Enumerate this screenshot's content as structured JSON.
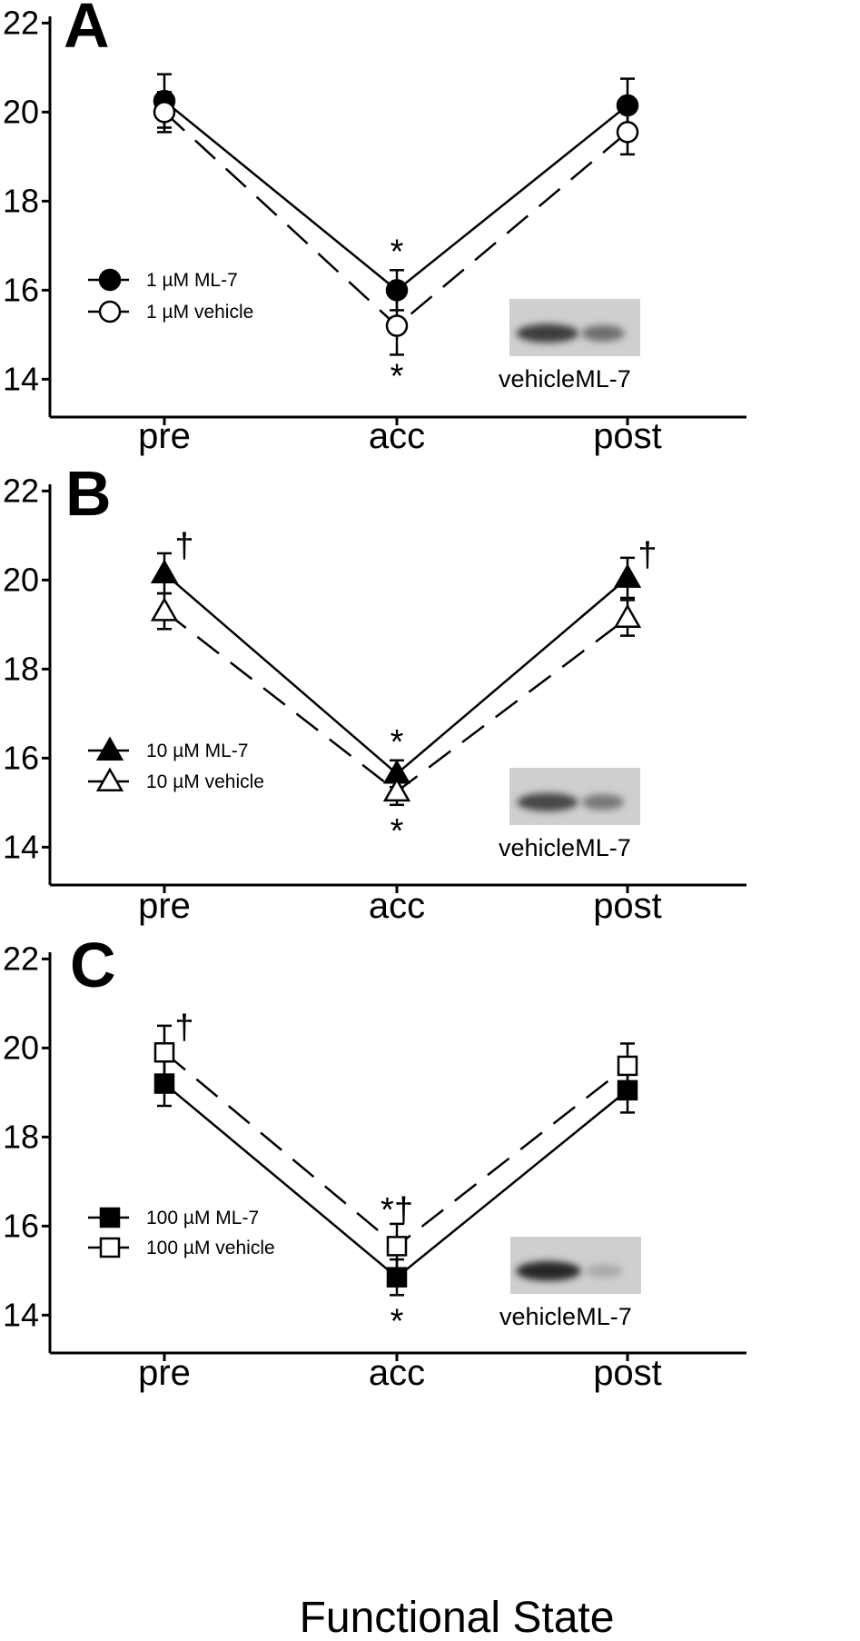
{
  "figure": {
    "xlabel": "Functional State"
  },
  "chart_data": [
    {
      "type": "line",
      "panel_label": "A",
      "categories": [
        "pre",
        "acc",
        "post"
      ],
      "ylim": [
        13,
        22
      ],
      "yticks": [
        14,
        16,
        18,
        20,
        22
      ],
      "grid": false,
      "legend_position": "lower-left",
      "series": [
        {
          "name": "1 µM ML-7",
          "values": [
            20.25,
            16.0,
            20.15
          ],
          "errors": [
            0.6,
            0.45,
            0.6
          ],
          "marker": "circle",
          "filled": true,
          "dash": "solid"
        },
        {
          "name": "1 µM vehicle",
          "values": [
            20.0,
            15.2,
            19.55
          ],
          "errors": [
            0.45,
            0.65,
            0.5
          ],
          "marker": "circle",
          "filled": false,
          "dash": "dashed"
        }
      ],
      "annotations": [
        {
          "text": "*",
          "category": "acc",
          "y": 16.9
        },
        {
          "text": "*",
          "category": "acc",
          "y": 14.1
        }
      ],
      "inset": {
        "labels": [
          "vehicle",
          "ML-7"
        ],
        "band_strengths": [
          0.85,
          0.6
        ]
      }
    },
    {
      "type": "line",
      "panel_label": "B",
      "categories": [
        "pre",
        "acc",
        "post"
      ],
      "ylim": [
        13,
        22
      ],
      "yticks": [
        14,
        16,
        18,
        20,
        22
      ],
      "grid": false,
      "legend_position": "lower-left",
      "series": [
        {
          "name": "10 µM ML-7",
          "values": [
            20.15,
            15.65,
            20.05
          ],
          "errors": [
            0.45,
            0.3,
            0.45
          ],
          "marker": "triangle",
          "filled": true,
          "dash": "solid"
        },
        {
          "name": "10 µM vehicle",
          "values": [
            19.3,
            15.25,
            19.15
          ],
          "errors": [
            0.4,
            0.3,
            0.4
          ],
          "marker": "triangle",
          "filled": false,
          "dash": "dashed"
        }
      ],
      "annotations": [
        {
          "text": "†",
          "category": "pre",
          "y": 20.8
        },
        {
          "text": "†",
          "category": "post",
          "y": 20.6
        },
        {
          "text": "*",
          "category": "acc",
          "y": 16.4
        },
        {
          "text": "*",
          "category": "acc",
          "y": 14.4
        }
      ],
      "inset": {
        "labels": [
          "vehicle",
          "ML-7"
        ],
        "band_strengths": [
          0.8,
          0.55
        ]
      }
    },
    {
      "type": "line",
      "panel_label": "C",
      "categories": [
        "pre",
        "acc",
        "post"
      ],
      "ylim": [
        13,
        22
      ],
      "yticks": [
        14,
        16,
        18,
        20,
        22
      ],
      "grid": false,
      "legend_position": "lower-left",
      "series": [
        {
          "name": "100 µM ML-7",
          "values": [
            19.2,
            14.85,
            19.05
          ],
          "errors": [
            0.5,
            0.4,
            0.5
          ],
          "marker": "square",
          "filled": true,
          "dash": "solid"
        },
        {
          "name": "100 µM vehicle",
          "values": [
            19.9,
            15.55,
            19.6
          ],
          "errors": [
            0.6,
            0.5,
            0.5
          ],
          "marker": "square",
          "filled": false,
          "dash": "dashed"
        }
      ],
      "annotations": [
        {
          "text": "†",
          "category": "pre",
          "y": 20.5
        },
        {
          "text": "*†",
          "category": "acc",
          "y": 16.4
        },
        {
          "text": "*",
          "category": "acc",
          "y": 13.9
        }
      ],
      "inset": {
        "labels": [
          "vehicle",
          "ML-7"
        ],
        "band_strengths": [
          0.95,
          0.3
        ]
      }
    }
  ]
}
